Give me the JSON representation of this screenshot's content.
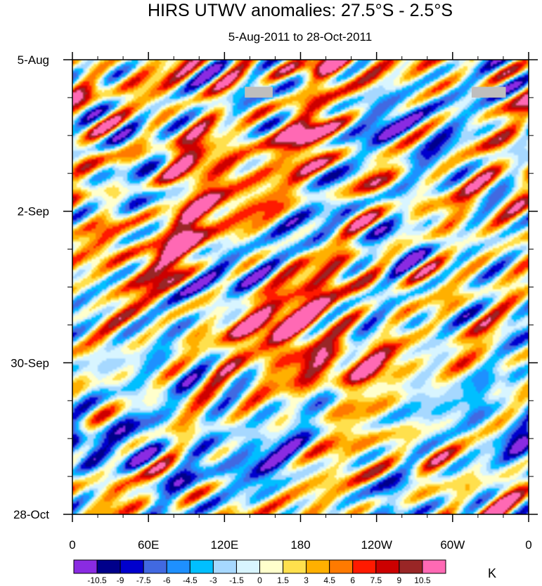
{
  "chart_data": {
    "type": "heatmap",
    "title": "HIRS UTWV anomalies: 27.5°S - 2.5°S",
    "subtitle": "5-Aug-2011 to 28-Oct-2011",
    "x_ticks": [
      "0",
      "60E",
      "120E",
      "180",
      "120W",
      "60W",
      "0"
    ],
    "x_range_deg": [
      0,
      360
    ],
    "y_ticks": [
      "5-Aug",
      "2-Sep",
      "30-Sep",
      "28-Oct"
    ],
    "y_range_days": [
      0,
      84
    ],
    "colorbar": {
      "units": "K",
      "levels": [
        "-10.5",
        "-9",
        "-7.5",
        "-6",
        "-4.5",
        "-3",
        "-1.5",
        "0",
        "1.5",
        "3",
        "4.5",
        "6",
        "7.5",
        "9",
        "10.5"
      ],
      "colors": [
        "#8A2BE2",
        "#00008B",
        "#0000CD",
        "#4169E1",
        "#1E90FF",
        "#00BFFF",
        "#A6D8FF",
        "#D8F5FF",
        "#FFFFCC",
        "#FFE04D",
        "#FFB000",
        "#FF7A00",
        "#FF1A00",
        "#CC0000",
        "#992626",
        "#FF69B4"
      ]
    },
    "missing_color": "#BEBEBE",
    "features": [
      {
        "kind": "warm",
        "lon": 92,
        "day": 18,
        "amp": 9.5,
        "sx": 18,
        "sy": 4.5
      },
      {
        "kind": "warm",
        "lon": 185,
        "day": 14,
        "amp": 9,
        "sx": 14,
        "sy": 3.5
      },
      {
        "kind": "warm",
        "lon": 195,
        "day": 1,
        "amp": 8,
        "sx": 25,
        "sy": 2
      },
      {
        "kind": "warm",
        "lon": 85,
        "day": 35,
        "amp": 9.5,
        "sx": 10,
        "sy": 6
      },
      {
        "kind": "warm",
        "lon": 25,
        "day": 34,
        "amp": 8,
        "sx": 8,
        "sy": 4
      },
      {
        "kind": "warm",
        "lon": 175,
        "day": 36,
        "amp": 7,
        "sx": 12,
        "sy": 3
      },
      {
        "kind": "warm",
        "lon": 155,
        "day": 49,
        "amp": 8,
        "sx": 25,
        "sy": 3
      },
      {
        "kind": "warm",
        "lon": 195,
        "day": 57,
        "amp": 8,
        "sx": 22,
        "sy": 3
      },
      {
        "kind": "warm",
        "lon": 235,
        "day": 56,
        "amp": 6.5,
        "sx": 20,
        "sy": 3
      },
      {
        "kind": "warm",
        "lon": 235,
        "day": 21,
        "amp": 6,
        "sx": 10,
        "sy": 3
      },
      {
        "kind": "warm",
        "lon": 195,
        "day": 44,
        "amp": 5.5,
        "sx": 28,
        "sy": 4
      },
      {
        "kind": "warm",
        "lon": 35,
        "day": 80,
        "amp": 7,
        "sx": 8,
        "sy": 3
      },
      {
        "kind": "warm",
        "lon": 335,
        "day": 61,
        "amp": 6,
        "sx": 6,
        "sy": 3
      },
      {
        "kind": "warm",
        "lon": 295,
        "day": 42,
        "amp": 5.5,
        "sx": 10,
        "sy": 3
      },
      {
        "kind": "warm",
        "lon": 135,
        "day": 28,
        "amp": 5,
        "sx": 18,
        "sy": 4
      },
      {
        "kind": "warm",
        "lon": 290,
        "day": 76,
        "amp": 5,
        "sx": 12,
        "sy": 5
      },
      {
        "kind": "warm",
        "lon": 10,
        "day": 7,
        "amp": 4,
        "sx": 10,
        "sy": 3
      },
      {
        "kind": "warm",
        "lon": 355,
        "day": 30,
        "amp": 5,
        "sx": 8,
        "sy": 4
      },
      {
        "kind": "cold",
        "lon": 245,
        "day": 11,
        "amp": -8,
        "sx": 22,
        "sy": 4
      },
      {
        "kind": "cold",
        "lon": 260,
        "day": 35,
        "amp": -7.5,
        "sx": 16,
        "sy": 3.5
      },
      {
        "kind": "cold",
        "lon": 50,
        "day": 71,
        "amp": -8.5,
        "sx": 18,
        "sy": 5
      },
      {
        "kind": "cold",
        "lon": 150,
        "day": 75,
        "amp": -7.5,
        "sx": 24,
        "sy": 4
      },
      {
        "kind": "cold",
        "lon": 5,
        "day": 72,
        "amp": -8,
        "sx": 12,
        "sy": 2.5
      },
      {
        "kind": "cold",
        "lon": 355,
        "day": 72,
        "amp": -7.5,
        "sx": 8,
        "sy": 3
      },
      {
        "kind": "cold",
        "lon": 170,
        "day": 33,
        "amp": -6,
        "sx": 20,
        "sy": 3
      },
      {
        "kind": "cold",
        "lon": 125,
        "day": 40,
        "amp": -6.5,
        "sx": 14,
        "sy": 3
      },
      {
        "kind": "cold",
        "lon": 325,
        "day": 60,
        "amp": -7,
        "sx": 10,
        "sy": 4
      },
      {
        "kind": "cold",
        "lon": 285,
        "day": 64,
        "amp": -6,
        "sx": 18,
        "sy": 4
      },
      {
        "kind": "cold",
        "lon": 95,
        "day": 60,
        "amp": -6,
        "sx": 12,
        "sy": 3
      },
      {
        "kind": "cold",
        "lon": 40,
        "day": 12,
        "amp": -5,
        "sx": 15,
        "sy": 3
      },
      {
        "kind": "cold",
        "lon": 60,
        "day": 24,
        "amp": -4.5,
        "sx": 12,
        "sy": 3
      },
      {
        "kind": "cold",
        "lon": 220,
        "day": 45,
        "amp": -4.5,
        "sx": 18,
        "sy": 3
      },
      {
        "kind": "cold",
        "lon": 10,
        "day": 42,
        "amp": -4,
        "sx": 10,
        "sy": 4
      },
      {
        "kind": "cold",
        "lon": 265,
        "day": 81,
        "amp": -5,
        "sx": 12,
        "sy": 3
      },
      {
        "kind": "cold",
        "lon": 300,
        "day": 20,
        "amp": -4,
        "sx": 12,
        "sy": 3
      },
      {
        "kind": "cold",
        "lon": 350,
        "day": 50,
        "amp": -5,
        "sx": 10,
        "sy": 3
      }
    ],
    "missing_patches": [
      {
        "lon0": 136,
        "lon1": 158,
        "day0": 5,
        "day1": 7
      },
      {
        "lon0": 315,
        "lon1": 342,
        "day0": 5,
        "day1": 7
      }
    ]
  }
}
